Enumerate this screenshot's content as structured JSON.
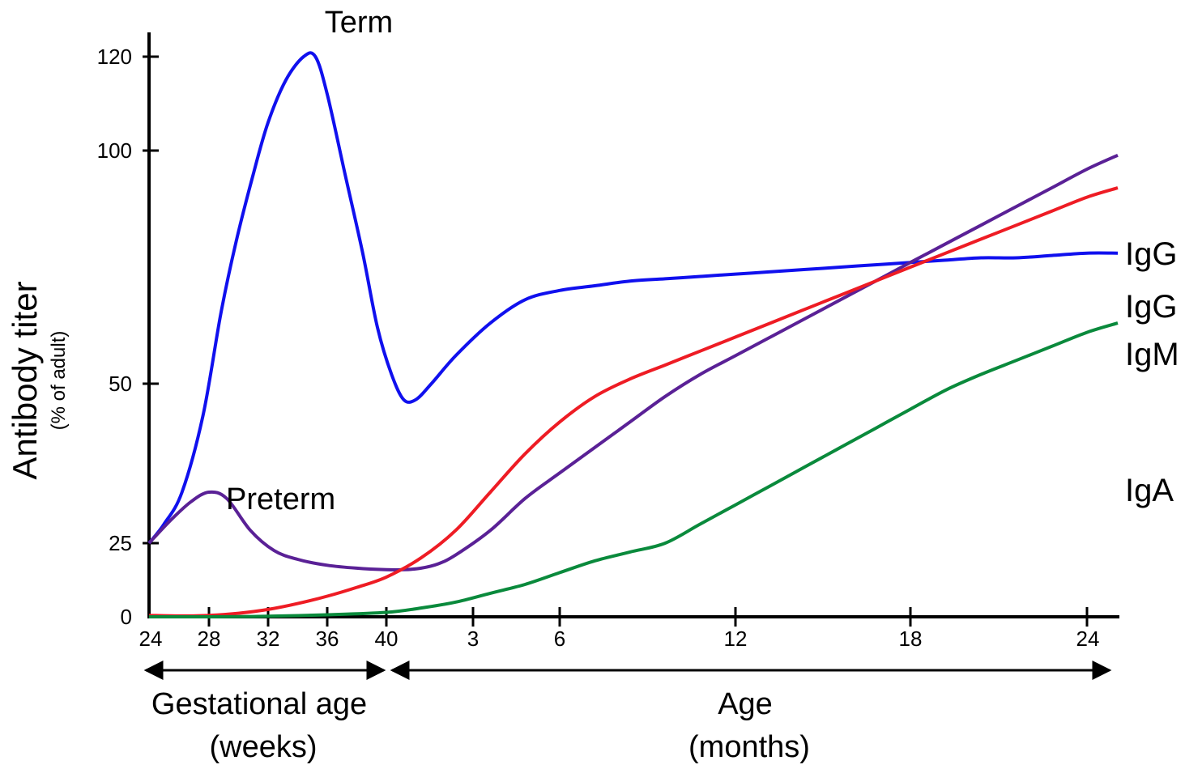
{
  "chart_data": {
    "type": "line",
    "title": "",
    "ylabel": "Antibody titer",
    "ylabel_sub": "(% of adult)",
    "y_ticks": [
      0,
      25,
      50,
      100,
      120
    ],
    "x_ticks": [
      {
        "key": "w24",
        "label": "24"
      },
      {
        "key": "w28",
        "label": "28"
      },
      {
        "key": "w32",
        "label": "32"
      },
      {
        "key": "w36",
        "label": "36"
      },
      {
        "key": "w40",
        "label": "40"
      },
      {
        "key": "m3",
        "label": "3"
      },
      {
        "key": "m6",
        "label": "6"
      },
      {
        "key": "m12",
        "label": "12"
      },
      {
        "key": "m18",
        "label": "18"
      },
      {
        "key": "m24",
        "label": "24"
      }
    ],
    "periods": [
      {
        "label_line1": "Gestational age",
        "label_line2": "(weeks)",
        "from": "w24",
        "to": "w40"
      },
      {
        "label_line1": "Age",
        "label_line2": "(months)",
        "from": "w40",
        "to": "m24"
      }
    ],
    "annotations": {
      "term": "Term",
      "preterm": "Preterm"
    },
    "series": [
      {
        "name": "IgG",
        "variant": "term",
        "color": "#1010ee",
        "points": [
          [
            0,
            25
          ],
          [
            0.25,
            28
          ],
          [
            0.55,
            33
          ],
          [
            0.9,
            45
          ],
          [
            1.2,
            65
          ],
          [
            1.45,
            80
          ],
          [
            1.75,
            95
          ],
          [
            2,
            106
          ],
          [
            2.3,
            115
          ],
          [
            2.6,
            120
          ],
          [
            2.8,
            120
          ],
          [
            3,
            112
          ],
          [
            3.3,
            95
          ],
          [
            3.6,
            78
          ],
          [
            3.85,
            62
          ],
          [
            4.15,
            52
          ],
          [
            4.5,
            47.5
          ],
          [
            4.85,
            47.5
          ],
          [
            5.3,
            50
          ],
          [
            6,
            56
          ],
          [
            7,
            63
          ],
          [
            8,
            68
          ],
          [
            9,
            70
          ],
          [
            10,
            71
          ],
          [
            11,
            72
          ],
          [
            12,
            72.5
          ],
          [
            13,
            73
          ],
          [
            14,
            73.5
          ],
          [
            15,
            74
          ],
          [
            16,
            74.5
          ],
          [
            17,
            75
          ],
          [
            18,
            75.5
          ],
          [
            19,
            76
          ],
          [
            20,
            76.5
          ],
          [
            21,
            77
          ],
          [
            22,
            77
          ],
          [
            23,
            77.5
          ],
          [
            24,
            78
          ],
          [
            24.7,
            78
          ]
        ]
      },
      {
        "name": "IgG",
        "variant": "preterm",
        "color": "#5a2196",
        "points": [
          [
            0,
            25
          ],
          [
            0.35,
            28.5
          ],
          [
            0.7,
            31.5
          ],
          [
            1,
            33
          ],
          [
            1.3,
            32
          ],
          [
            1.7,
            27
          ],
          [
            2.1,
            22.5
          ],
          [
            2.5,
            19.5
          ],
          [
            3,
            17.5
          ],
          [
            3.5,
            16.5
          ],
          [
            4,
            16
          ],
          [
            4.5,
            16
          ],
          [
            5,
            16.5
          ],
          [
            5.5,
            18
          ],
          [
            6,
            21
          ],
          [
            7,
            27
          ],
          [
            8,
            32
          ],
          [
            9,
            36
          ],
          [
            10,
            40
          ],
          [
            11,
            44
          ],
          [
            12,
            48
          ],
          [
            13,
            52
          ],
          [
            14,
            56
          ],
          [
            15,
            60
          ],
          [
            16,
            64
          ],
          [
            17,
            68
          ],
          [
            18,
            72
          ],
          [
            19,
            76
          ],
          [
            20,
            80
          ],
          [
            21,
            84
          ],
          [
            22,
            88
          ],
          [
            23,
            92
          ],
          [
            24,
            96
          ],
          [
            24.7,
            99
          ]
        ]
      },
      {
        "name": "IgM",
        "color": "#ee1c24",
        "points": [
          [
            0,
            0.5
          ],
          [
            0.5,
            0.3
          ],
          [
            1,
            0.5
          ],
          [
            1.5,
            1.2
          ],
          [
            2,
            2.5
          ],
          [
            2.5,
            4.5
          ],
          [
            3,
            7
          ],
          [
            3.5,
            10
          ],
          [
            4,
            13.5
          ],
          [
            5,
            20
          ],
          [
            6,
            27
          ],
          [
            7,
            33
          ],
          [
            8,
            39
          ],
          [
            9,
            44
          ],
          [
            10,
            48
          ],
          [
            11,
            51
          ],
          [
            12,
            54
          ],
          [
            13,
            57
          ],
          [
            14,
            60
          ],
          [
            15,
            63
          ],
          [
            16,
            66
          ],
          [
            17,
            69
          ],
          [
            18,
            72
          ],
          [
            19,
            75
          ],
          [
            20,
            78
          ],
          [
            21,
            81
          ],
          [
            22,
            84
          ],
          [
            23,
            87
          ],
          [
            24,
            90
          ],
          [
            24.7,
            92
          ]
        ]
      },
      {
        "name": "IgA",
        "color": "#0a8a3c",
        "points": [
          [
            0,
            0
          ],
          [
            1,
            0
          ],
          [
            2,
            0.2
          ],
          [
            3,
            0.7
          ],
          [
            4,
            1.5
          ],
          [
            5,
            3
          ],
          [
            6,
            5
          ],
          [
            7,
            8
          ],
          [
            8,
            11
          ],
          [
            9,
            15
          ],
          [
            10,
            19
          ],
          [
            11,
            22
          ],
          [
            12,
            25
          ],
          [
            13,
            28
          ],
          [
            14,
            31
          ],
          [
            15,
            34
          ],
          [
            16,
            37
          ],
          [
            17,
            40
          ],
          [
            18,
            43
          ],
          [
            19,
            46
          ],
          [
            20,
            49
          ],
          [
            21,
            52
          ],
          [
            22,
            55
          ],
          [
            23,
            58
          ],
          [
            24,
            61
          ],
          [
            24.7,
            63
          ]
        ]
      }
    ]
  }
}
